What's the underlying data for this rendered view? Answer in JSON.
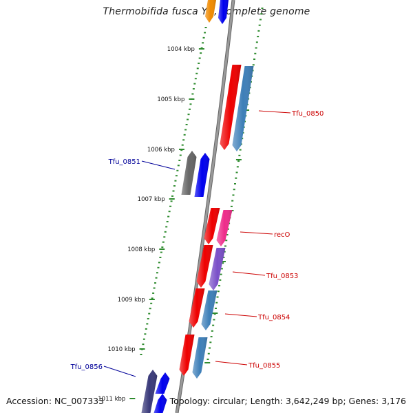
{
  "title": "Thermobifida fusca YX, complete genome",
  "accession": "Accession: NC_007333",
  "topology": "Topology: circular; Length: 3,642,249 bp; Genes: 3,176",
  "ruler": {
    "unit": "kbp",
    "ticks": [
      "1004 kbp",
      "1005 kbp",
      "1006 kbp",
      "1007 kbp",
      "1008 kbp",
      "1009 kbp",
      "1010 kbp",
      "1011 kbp"
    ]
  },
  "gene_labels": [
    {
      "text": "Tfu_0850",
      "strand": "reverse",
      "color": "#cc0000"
    },
    {
      "text": "Tfu_0851",
      "strand": "forward",
      "color": "#000099"
    },
    {
      "text": "recO",
      "strand": "reverse",
      "color": "#cc0000"
    },
    {
      "text": "Tfu_0853",
      "strand": "reverse",
      "color": "#cc0000"
    },
    {
      "text": "Tfu_0854",
      "strand": "reverse",
      "color": "#cc0000"
    },
    {
      "text": "Tfu_0855",
      "strand": "reverse",
      "color": "#cc0000"
    },
    {
      "text": "Tfu_0856",
      "strand": "forward",
      "color": "#000099"
    }
  ],
  "colors": {
    "backbone": "#8a8a8a",
    "ticks": "#2e8b2e",
    "cds_forward": "#0000ee",
    "cds_reverse": "#ee0000",
    "cog_blue": "#3e7fb8",
    "cog_gray": "#666666",
    "cog_pink": "#ee2c8a",
    "cog_purple": "#7a50c8",
    "cog_navy": "#3a3a7a",
    "cog_orange": "#f08a00"
  }
}
